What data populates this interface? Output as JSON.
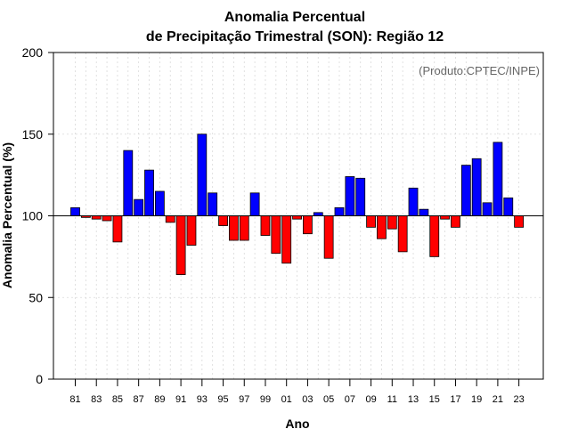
{
  "chart_data": {
    "type": "bar",
    "title_line1": "Anomalia Percentual",
    "title_line2": "de Precipitação Trimestral (SON): Região 12",
    "xlabel": "Ano",
    "ylabel": "Anomalia Percentual (%)",
    "credit": "(Produto:CPTEC/INPE)",
    "baseline": 100,
    "ylim": [
      0,
      200
    ],
    "yticks": [
      0,
      50,
      100,
      150,
      200
    ],
    "grid": true,
    "colors": {
      "above": "#0000ff",
      "below": "#ff0000",
      "baseline": "#000000"
    },
    "x_tick_labels": [
      "81",
      "83",
      "85",
      "87",
      "89",
      "91",
      "93",
      "95",
      "97",
      "99",
      "01",
      "03",
      "05",
      "07",
      "09",
      "11",
      "13",
      "15",
      "17",
      "19",
      "21",
      "23"
    ],
    "categories": [
      "1981",
      "1982",
      "1983",
      "1984",
      "1985",
      "1986",
      "1987",
      "1988",
      "1989",
      "1990",
      "1991",
      "1992",
      "1993",
      "1994",
      "1995",
      "1996",
      "1997",
      "1998",
      "1999",
      "2000",
      "2001",
      "2002",
      "2003",
      "2004",
      "2005",
      "2006",
      "2007",
      "2008",
      "2009",
      "2010",
      "2011",
      "2012",
      "2013",
      "2014",
      "2015",
      "2016",
      "2017",
      "2018",
      "2019",
      "2020",
      "2021",
      "2022",
      "2023"
    ],
    "values": [
      105,
      99,
      98,
      97,
      84,
      140,
      110,
      128,
      115,
      96,
      64,
      82,
      150,
      114,
      94,
      85,
      85,
      114,
      88,
      77,
      71,
      98,
      89,
      102,
      74,
      105,
      124,
      123,
      93,
      86,
      92,
      78,
      117,
      104,
      75,
      98,
      93,
      131,
      135,
      108,
      145,
      111,
      93
    ]
  }
}
